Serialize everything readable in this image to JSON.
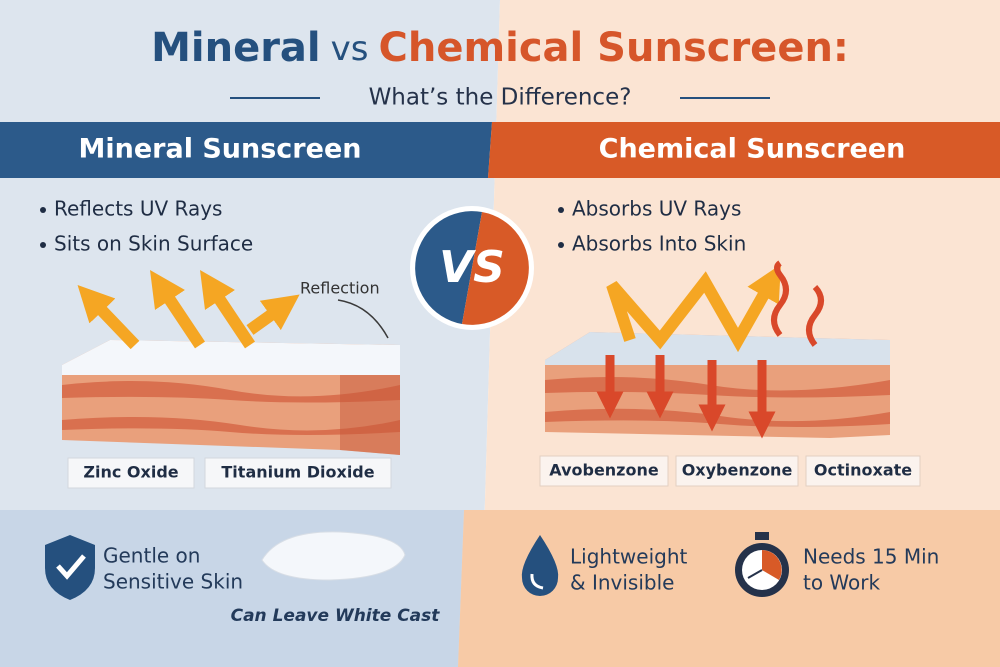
{
  "title": {
    "part1": "Mineral",
    "part2": "vs",
    "part3": "Chemical Sunscreen:"
  },
  "subtitle": "What’s the Difference?",
  "badge": "VS",
  "mineral": {
    "heading": "Mineral Sunscreen",
    "bullets": [
      "Reflects UV Rays",
      "Sits on Skin Surface"
    ],
    "annotation": "Reflection",
    "ingredients": [
      "Zinc Oxide",
      "Titanium Dioxide"
    ],
    "features": [
      {
        "lines": [
          "Gentle on",
          "Sensitive Skin"
        ]
      },
      {
        "lines": [
          "Can Leave White Cast"
        ]
      }
    ]
  },
  "chemical": {
    "heading": "Chemical Sunscreen",
    "bullets": [
      "Absorbs UV Rays",
      "Absorbs Into Skin"
    ],
    "ingredients": [
      "Avobenzone",
      "Oxybenzone",
      "Octinoxate"
    ],
    "features": [
      {
        "lines": [
          "Lightweight",
          "& Invisible"
        ]
      },
      {
        "lines": [
          "Needs 15 Min",
          "to Work"
        ]
      }
    ]
  }
}
